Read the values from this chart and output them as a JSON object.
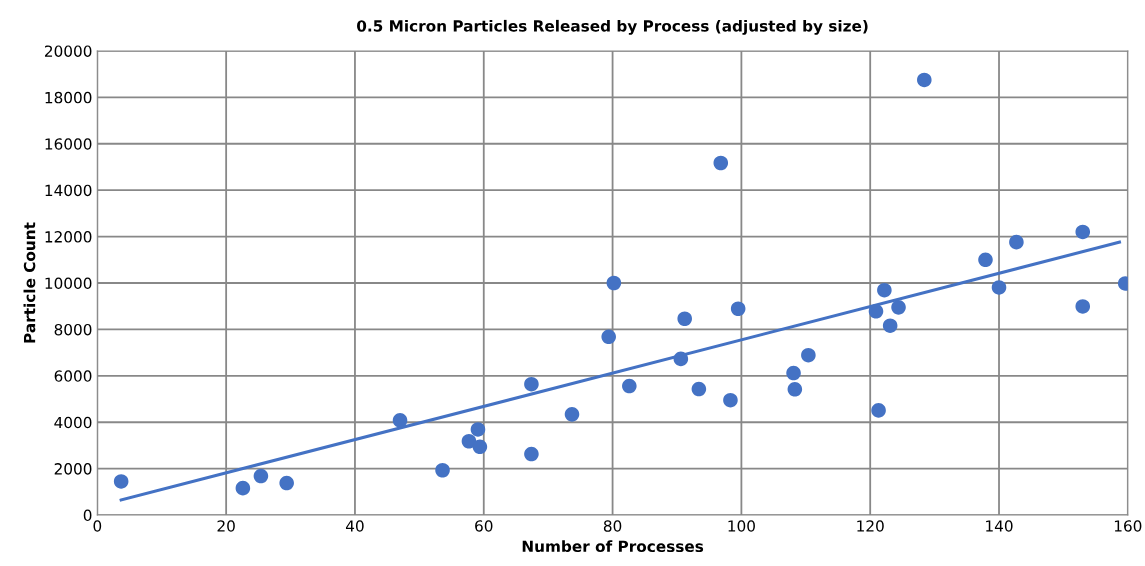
{
  "chart_data": {
    "type": "scatter",
    "title": "0.5 Micron Particles Released by Process (adjusted by size)",
    "xlabel": "Number of Processes",
    "ylabel": "Particle Count",
    "xlim": [
      0,
      160
    ],
    "xticks": [
      0,
      20,
      40,
      60,
      80,
      100,
      120,
      140,
      160
    ],
    "ylim": [
      0,
      20000
    ],
    "yticks": [
      0,
      2000,
      4000,
      6000,
      8000,
      10000,
      12000,
      14000,
      16000,
      18000,
      20000
    ],
    "grid": true,
    "marker": "circle",
    "series": [
      {
        "color": "#4472c4",
        "x": [
          3.7,
          22.6,
          25.4,
          29.4,
          47.0,
          53.6,
          57.7,
          59.1,
          59.4,
          67.4,
          67.4,
          73.7,
          79.4,
          80.2,
          82.6,
          90.6,
          91.2,
          93.4,
          96.8,
          98.3,
          99.5,
          108.1,
          108.3,
          110.4,
          120.9,
          121.3,
          122.2,
          123.1,
          124.4,
          128.4,
          137.9,
          140.0,
          142.7,
          153.0,
          153.0,
          159.6
        ],
        "values": [
          1450,
          1160,
          1680,
          1380,
          4080,
          1930,
          3180,
          3690,
          2940,
          5640,
          2630,
          4340,
          7680,
          10000,
          5560,
          6730,
          8460,
          5430,
          15170,
          4950,
          8890,
          6120,
          5420,
          6890,
          8780,
          4510,
          9690,
          8160,
          8950,
          18750,
          11000,
          9810,
          11760,
          12200,
          8990,
          9980
        ]
      },
      {
        "type": "line",
        "color": "#4472c4",
        "marker": "none",
        "x": [
          3.7,
          158.7
        ],
        "values": [
          650,
          11760
        ]
      }
    ]
  }
}
